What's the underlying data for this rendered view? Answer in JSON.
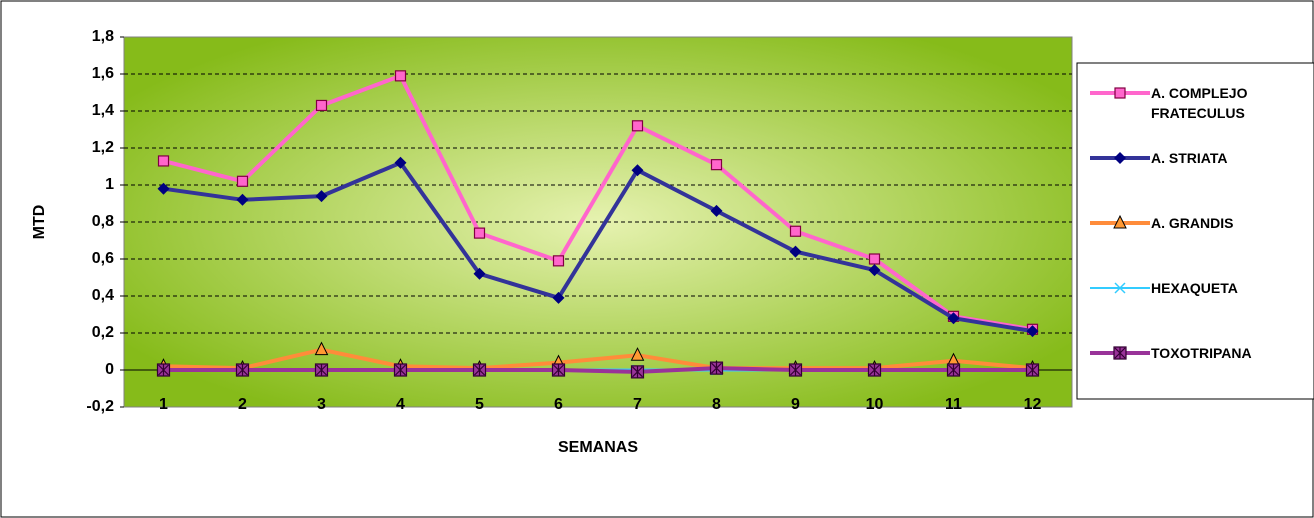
{
  "chart_data": {
    "type": "line",
    "xlabel": "SEMANAS",
    "ylabel": "MTD",
    "categories": [
      "1",
      "2",
      "3",
      "4",
      "5",
      "6",
      "7",
      "8",
      "9",
      "10",
      "11",
      "12"
    ],
    "series": [
      {
        "name": "A. COMPLEJO FRATECULUS",
        "color": "#ff66cc",
        "marker": "square",
        "values": [
          1.13,
          1.02,
          1.43,
          1.59,
          0.74,
          0.59,
          1.32,
          1.11,
          0.75,
          0.6,
          0.29,
          0.22
        ]
      },
      {
        "name": "A. STRIATA",
        "color": "#333399",
        "marker": "diamond",
        "values": [
          0.98,
          0.92,
          0.94,
          1.12,
          0.52,
          0.39,
          1.08,
          0.86,
          0.64,
          0.54,
          0.28,
          0.21
        ]
      },
      {
        "name": "A. GRANDIS",
        "color": "#ff8c3a",
        "marker": "triangle",
        "values": [
          0.02,
          0.01,
          0.11,
          0.02,
          0.01,
          0.04,
          0.08,
          0.01,
          0.01,
          0.01,
          0.05,
          0.01
        ]
      },
      {
        "name": "HEXAQUETA",
        "color": "#33ccff",
        "marker": "x",
        "values": [
          0,
          0,
          0,
          0,
          0,
          0,
          0,
          0,
          0,
          0,
          0,
          0
        ]
      },
      {
        "name": "TOXOTRIPANA",
        "color": "#993399",
        "marker": "star-square",
        "values": [
          0,
          0,
          0,
          0,
          0,
          0,
          -0.01,
          0.01,
          0,
          0,
          0,
          0
        ]
      }
    ],
    "ylim": [
      -0.2,
      1.8
    ],
    "yticks": [
      {
        "value": -0.2,
        "label": "-0,2"
      },
      0,
      {
        "value": 0.2,
        "label": "0,2"
      },
      {
        "value": 0.4,
        "label": "0,4"
      },
      {
        "value": 0.6,
        "label": "0,6"
      },
      {
        "value": 0.8,
        "label": "0,8"
      },
      1,
      {
        "value": 1.2,
        "label": "1,2"
      },
      {
        "value": 1.4,
        "label": "1,4"
      },
      {
        "value": 1.6,
        "label": "1,6"
      },
      {
        "value": 1.8,
        "label": "1,8"
      }
    ],
    "grid": true,
    "legend": "right"
  }
}
